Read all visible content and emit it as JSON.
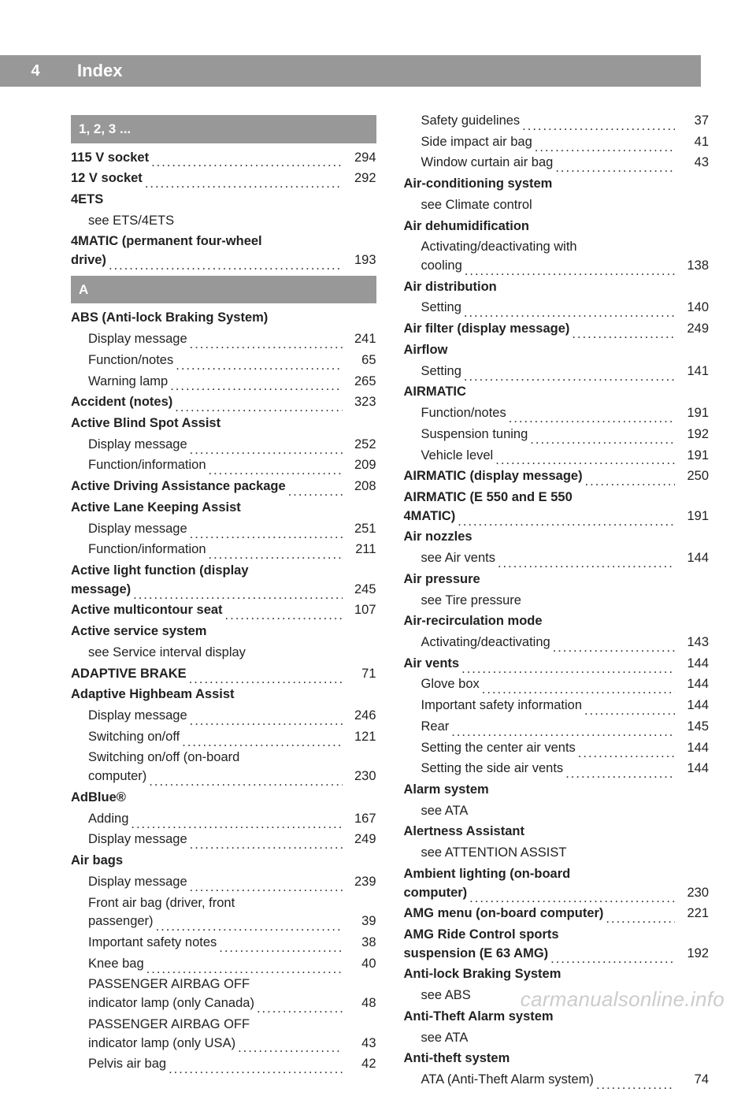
{
  "pageNumber": "4",
  "headerTitle": "Index",
  "watermark": "carmanualsonline.info",
  "sections": {
    "sec123": "1, 2, 3 ...",
    "secA": "A"
  },
  "col1": [
    {
      "type": "section",
      "v": "sec123"
    },
    {
      "bold": true,
      "label": "115 V socket",
      "page": "294"
    },
    {
      "bold": true,
      "label": "12 V socket",
      "page": "292"
    },
    {
      "bold": true,
      "label": "4ETS",
      "nopage": true
    },
    {
      "sub": true,
      "label": "see ETS/4ETS",
      "nopage": true
    },
    {
      "bold": true,
      "label": "4MATIC (permanent four-wheel",
      "nopage": true,
      "multiline": true
    },
    {
      "bold": true,
      "label": "drive)",
      "page": "193"
    },
    {
      "type": "section",
      "v": "secA"
    },
    {
      "bold": true,
      "label": "ABS (Anti-lock Braking System)",
      "nopage": true
    },
    {
      "sub": true,
      "label": "Display message",
      "page": "241"
    },
    {
      "sub": true,
      "label": "Function/notes",
      "page": "65"
    },
    {
      "sub": true,
      "label": "Warning lamp",
      "page": "265"
    },
    {
      "bold": true,
      "label": "Accident (notes)",
      "page": "323"
    },
    {
      "bold": true,
      "label": "Active Blind Spot Assist",
      "nopage": true
    },
    {
      "sub": true,
      "label": "Display message",
      "page": "252"
    },
    {
      "sub": true,
      "label": "Function/information",
      "page": "209"
    },
    {
      "bold": true,
      "label": "Active Driving Assistance package",
      "page": "208"
    },
    {
      "bold": true,
      "label": "Active Lane Keeping Assist",
      "nopage": true
    },
    {
      "sub": true,
      "label": "Display message",
      "page": "251"
    },
    {
      "sub": true,
      "label": "Function/information",
      "page": "211"
    },
    {
      "bold": true,
      "label": "Active light function (display",
      "nopage": true,
      "multiline": true
    },
    {
      "bold": true,
      "label": "message)",
      "page": "245"
    },
    {
      "bold": true,
      "label": "Active multicontour seat",
      "page": "107"
    },
    {
      "bold": true,
      "label": "Active service system",
      "nopage": true
    },
    {
      "sub": true,
      "label": "see Service interval display",
      "nopage": true
    },
    {
      "bold": true,
      "label": "ADAPTIVE BRAKE",
      "page": "71"
    },
    {
      "bold": true,
      "label": "Adaptive Highbeam Assist",
      "nopage": true
    },
    {
      "sub": true,
      "label": "Display message",
      "page": "246"
    },
    {
      "sub": true,
      "label": "Switching on/off",
      "page": "121"
    },
    {
      "sub": true,
      "label": "Switching on/off (on-board",
      "nopage": true,
      "multiline": true
    },
    {
      "sub": true,
      "label": "computer)",
      "page": "230"
    },
    {
      "bold": true,
      "label": "AdBlue®",
      "nopage": true
    },
    {
      "sub": true,
      "label": "Adding",
      "page": "167"
    },
    {
      "sub": true,
      "label": "Display message",
      "page": "249"
    },
    {
      "bold": true,
      "label": "Air bags",
      "nopage": true
    },
    {
      "sub": true,
      "label": "Display message",
      "page": "239"
    },
    {
      "sub": true,
      "label": "Front air bag (driver, front",
      "nopage": true,
      "multiline": true
    },
    {
      "sub": true,
      "label": "passenger)",
      "page": "39"
    },
    {
      "sub": true,
      "label": "Important safety notes",
      "page": "38"
    },
    {
      "sub": true,
      "label": "Knee bag",
      "page": "40"
    },
    {
      "sub": true,
      "label": "PASSENGER AIRBAG OFF",
      "nopage": true,
      "multiline": true
    },
    {
      "sub": true,
      "label": "indicator lamp (only Canada)",
      "page": "48"
    },
    {
      "sub": true,
      "label": "PASSENGER AIRBAG OFF",
      "nopage": true,
      "multiline": true
    },
    {
      "sub": true,
      "label": "indicator lamp (only USA)",
      "page": "43"
    },
    {
      "sub": true,
      "label": "Pelvis air bag",
      "page": "42"
    }
  ],
  "col2": [
    {
      "sub": true,
      "label": "Safety guidelines",
      "page": "37"
    },
    {
      "sub": true,
      "label": "Side impact air bag",
      "page": "41"
    },
    {
      "sub": true,
      "label": "Window curtain air bag",
      "page": "43"
    },
    {
      "bold": true,
      "label": "Air-conditioning system",
      "nopage": true
    },
    {
      "sub": true,
      "label": "see Climate control",
      "nopage": true
    },
    {
      "bold": true,
      "label": "Air dehumidification",
      "nopage": true
    },
    {
      "sub": true,
      "label": "Activating/deactivating with",
      "nopage": true,
      "multiline": true
    },
    {
      "sub": true,
      "label": "cooling",
      "page": "138"
    },
    {
      "bold": true,
      "label": "Air distribution",
      "nopage": true
    },
    {
      "sub": true,
      "label": "Setting",
      "page": "140"
    },
    {
      "bold": true,
      "label": "Air filter (display message)",
      "page": "249"
    },
    {
      "bold": true,
      "label": "Airflow",
      "nopage": true
    },
    {
      "sub": true,
      "label": "Setting",
      "page": "141"
    },
    {
      "bold": true,
      "label": "AIRMATIC",
      "nopage": true
    },
    {
      "sub": true,
      "label": "Function/notes",
      "page": "191"
    },
    {
      "sub": true,
      "label": "Suspension tuning",
      "page": "192"
    },
    {
      "sub": true,
      "label": "Vehicle level",
      "page": "191"
    },
    {
      "bold": true,
      "label": "AIRMATIC (display message)",
      "page": "250"
    },
    {
      "bold": true,
      "label": "AIRMATIC (E 550 and E 550",
      "nopage": true,
      "multiline": true
    },
    {
      "bold": true,
      "label": "4MATIC)",
      "page": "191"
    },
    {
      "bold": true,
      "label": "Air nozzles",
      "nopage": true
    },
    {
      "sub": true,
      "label": "see Air vents",
      "page": "144"
    },
    {
      "bold": true,
      "label": "Air pressure",
      "nopage": true
    },
    {
      "sub": true,
      "label": "see Tire pressure",
      "nopage": true
    },
    {
      "bold": true,
      "label": "Air-recirculation mode",
      "nopage": true
    },
    {
      "sub": true,
      "label": "Activating/deactivating",
      "page": "143"
    },
    {
      "bold": true,
      "label": "Air vents",
      "page": "144"
    },
    {
      "sub": true,
      "label": "Glove box",
      "page": "144"
    },
    {
      "sub": true,
      "label": "Important safety information",
      "page": "144"
    },
    {
      "sub": true,
      "label": "Rear",
      "page": "145"
    },
    {
      "sub": true,
      "label": "Setting the center air vents",
      "page": "144"
    },
    {
      "sub": true,
      "label": "Setting the side air vents",
      "page": "144"
    },
    {
      "bold": true,
      "label": "Alarm system",
      "nopage": true
    },
    {
      "sub": true,
      "label": "see ATA",
      "nopage": true
    },
    {
      "bold": true,
      "label": "Alertness Assistant",
      "nopage": true
    },
    {
      "sub": true,
      "label": "see ATTENTION ASSIST",
      "nopage": true
    },
    {
      "bold": true,
      "label": "Ambient lighting (on-board",
      "nopage": true,
      "multiline": true
    },
    {
      "bold": true,
      "label": "computer)",
      "page": "230"
    },
    {
      "bold": true,
      "label": "AMG menu (on-board computer)",
      "page": "221"
    },
    {
      "bold": true,
      "label": "AMG Ride Control sports",
      "nopage": true,
      "multiline": true
    },
    {
      "bold": true,
      "label": "suspension (E 63 AMG)",
      "page": "192"
    },
    {
      "bold": true,
      "label": "Anti-lock Braking System",
      "nopage": true
    },
    {
      "sub": true,
      "label": "see ABS",
      "nopage": true
    },
    {
      "bold": true,
      "label": "Anti-Theft Alarm system",
      "nopage": true
    },
    {
      "sub": true,
      "label": "see ATA",
      "nopage": true
    },
    {
      "bold": true,
      "label": "Anti-theft system",
      "nopage": true
    },
    {
      "sub": true,
      "label": "ATA (Anti-Theft Alarm system)",
      "page": "74"
    }
  ]
}
